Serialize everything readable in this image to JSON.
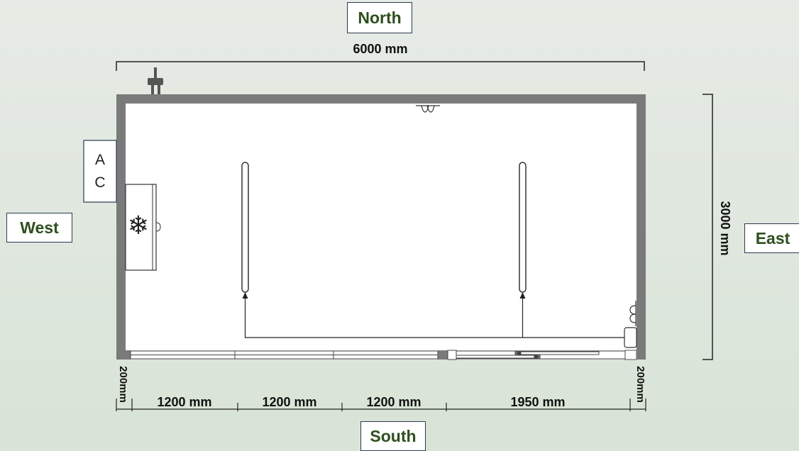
{
  "compass": {
    "north": "North",
    "south": "South",
    "east": "East",
    "west": "West"
  },
  "dimensions": {
    "width": "6000 mm",
    "depth": "3000 mm",
    "left_wall": "200mm",
    "right_wall": "200mm",
    "segments": [
      "1200 mm",
      "1200 mm",
      "1200 mm",
      "1950 mm"
    ]
  },
  "equipment": {
    "ac_line1": "A",
    "ac_line2": "C",
    "freezer_symbol": "❄"
  },
  "colors": {
    "wall": "#7a7a7a",
    "label_text": "#2f4f1f",
    "line": "#222222"
  }
}
